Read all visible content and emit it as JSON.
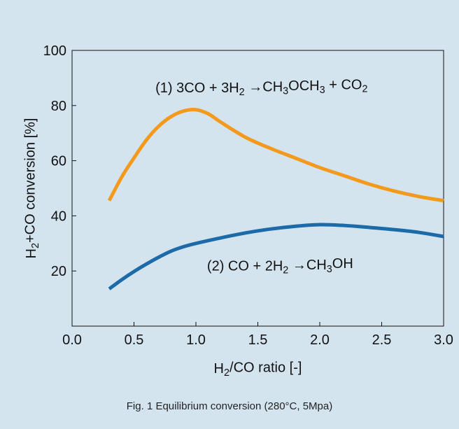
{
  "chart_data": {
    "type": "line",
    "xlabel": "H2/CO ratio [-]",
    "ylabel": "H2+CO conversion [%]",
    "xlim": [
      0.0,
      3.0
    ],
    "ylim": [
      0,
      100
    ],
    "x_ticks": [
      0.0,
      0.5,
      1.0,
      1.5,
      2.0,
      2.5,
      3.0
    ],
    "x_tick_labels": [
      "0.0",
      "0.5",
      "1.0",
      "1.5",
      "2.0",
      "2.5",
      "3.0"
    ],
    "y_ticks": [
      20,
      40,
      60,
      80,
      100
    ],
    "y_tick_labels": [
      "20",
      "40",
      "60",
      "80",
      "100"
    ],
    "grid": false,
    "legend": "none",
    "series": [
      {
        "color": "#f39a1e",
        "x": [
          0.3,
          0.4,
          0.5,
          0.6,
          0.7,
          0.8,
          0.9,
          1.0,
          1.1,
          1.2,
          1.4,
          1.6,
          1.8,
          2.0,
          2.2,
          2.4,
          2.6,
          2.8,
          3.0
        ],
        "y": [
          45.5,
          54,
          61,
          67.5,
          72.5,
          76,
          78,
          78.5,
          77,
          74,
          68.5,
          64.5,
          61,
          57.5,
          54.5,
          51.5,
          49,
          47,
          45.5
        ]
      },
      {
        "color": "#1c6aa8",
        "x": [
          0.3,
          0.4,
          0.5,
          0.6,
          0.7,
          0.8,
          0.9,
          1.0,
          1.2,
          1.4,
          1.6,
          1.8,
          2.0,
          2.2,
          2.4,
          2.6,
          2.8,
          3.0
        ],
        "y": [
          13.5,
          16.8,
          19.8,
          22.5,
          25,
          27.2,
          28.8,
          30,
          32,
          33.8,
          35.2,
          36.2,
          36.8,
          36.5,
          35.8,
          35,
          34,
          32.5
        ]
      }
    ],
    "annotations": [
      {
        "text": "(1) 3CO + 3H2 →CH3OCH3 + CO2",
        "x": 1.53,
        "y": 86.5
      },
      {
        "text": "(2) CO + 2H2 →CH3OH",
        "x": 1.68,
        "y": 22
      }
    ],
    "caption": "Fig. 1  Equilibrium conversion (280°C, 5Mpa)"
  }
}
